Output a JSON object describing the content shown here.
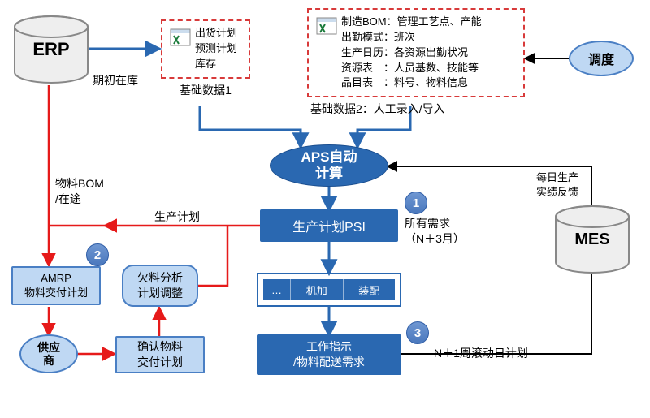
{
  "colors": {
    "blue_main": "#2a68b1",
    "blue_light": "#bfd8f3",
    "blue_border": "#4a7fc4",
    "red": "#e61a1a",
    "red_dash": "#d83a3a",
    "cyl_fill": "#eeeeee",
    "cyl_stroke": "#888888",
    "badge_fill": "#5a85c6",
    "badge_stroke": "#2f5da6"
  },
  "erp": {
    "label": "ERP"
  },
  "mes": {
    "label": "MES"
  },
  "dispatch": {
    "label": "调度"
  },
  "base1": {
    "lines": [
      "出货计划",
      "预测计划",
      "库存"
    ],
    "caption": "基础数据1"
  },
  "base2": {
    "items": [
      {
        "k": "制造BOM：",
        "v": "管理工艺点、产能"
      },
      {
        "k": "出勤模式：",
        "v": "班次"
      },
      {
        "k": "生产日历：",
        "v": "各资源出勤状况"
      },
      {
        "k": "资源表　：",
        "v": "人员基数、技能等"
      },
      {
        "k": "品目表　：",
        "v": "料号、物料信息"
      }
    ],
    "caption": "基础数据2：人工录入/导入"
  },
  "aps": {
    "label_l1": "APS自动",
    "label_l2": "计算"
  },
  "psi": {
    "label": "生产计划PSI"
  },
  "tabs": {
    "items": [
      "…",
      "机加",
      "装配"
    ]
  },
  "work": {
    "label_l1": "工作指示",
    "label_l2": "/物料配送需求"
  },
  "amrp": {
    "label_l1": "AMRP",
    "label_l2": "物料交付计划"
  },
  "shortage": {
    "label_l1": "欠料分析",
    "label_l2": "计划调整"
  },
  "supplier": {
    "label_l1": "供应",
    "label_l2": "商"
  },
  "confirm": {
    "label_l1": "确认物料",
    "label_l2": "交付计划"
  },
  "annot": {
    "erp_right": "期初在库",
    "erp_down": "物料BOM\n/在途",
    "psi_left": "生产计划",
    "n1_l1": "所有需求",
    "n1_l2": "（N＋3月）",
    "n3": "N＋1周滚动日计划",
    "mes_l1": "每日生产",
    "mes_l2": "实绩反馈"
  },
  "badges": {
    "n1": "1",
    "n2": "2",
    "n3": "3"
  }
}
